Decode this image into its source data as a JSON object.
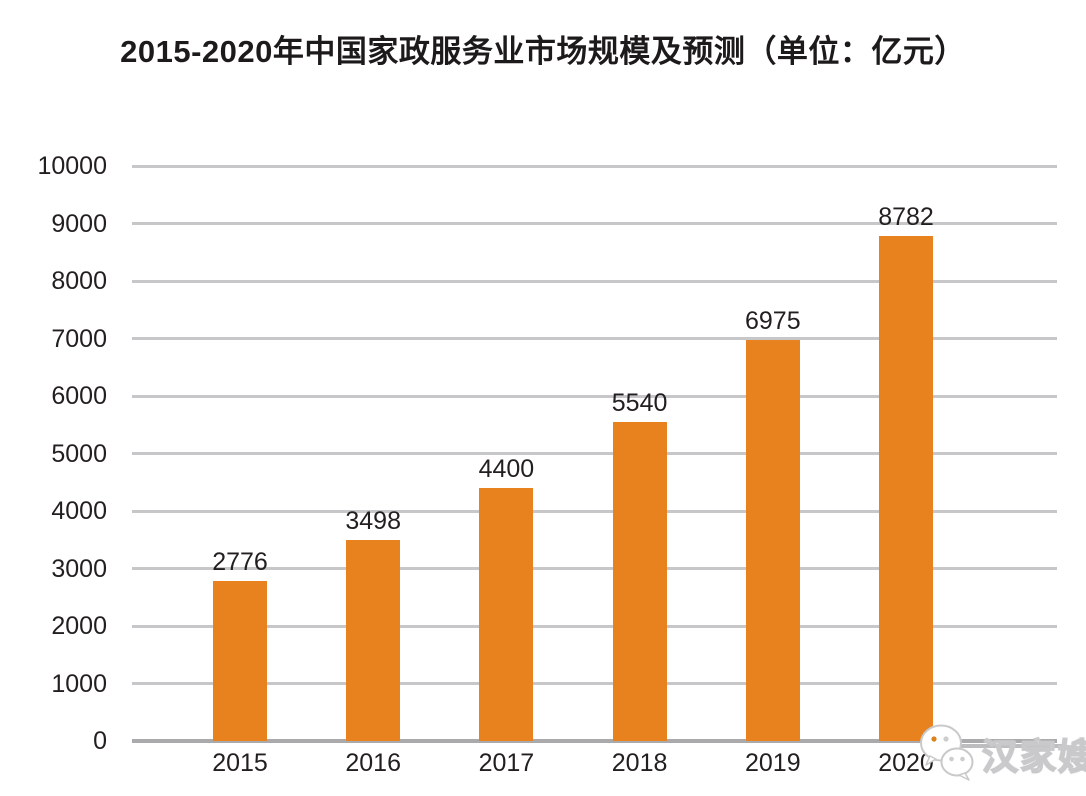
{
  "chart_data": {
    "type": "bar",
    "title": "2015-2020年中国家政服务业市场规模及预测（单位：亿元）",
    "categories": [
      "2015",
      "2016",
      "2017",
      "2018",
      "2019",
      "2020"
    ],
    "values": [
      2776,
      3498,
      4400,
      5540,
      6975,
      8782
    ],
    "unit": "亿元",
    "xlabel": "",
    "ylabel": "",
    "ylim": [
      0,
      10000
    ],
    "ytick_step": 1000,
    "yticks": [
      0,
      1000,
      2000,
      3000,
      4000,
      5000,
      6000,
      7000,
      8000,
      9000,
      10000
    ],
    "grid": true,
    "legend_position": "none",
    "bar_color": "#e8821e",
    "gridline_color": "#c7c7c9",
    "axisline_color": "#aaaaac",
    "text_color": "#231f20"
  },
  "watermark": {
    "name": "汉家嫂",
    "icon": "wechat-icon"
  }
}
